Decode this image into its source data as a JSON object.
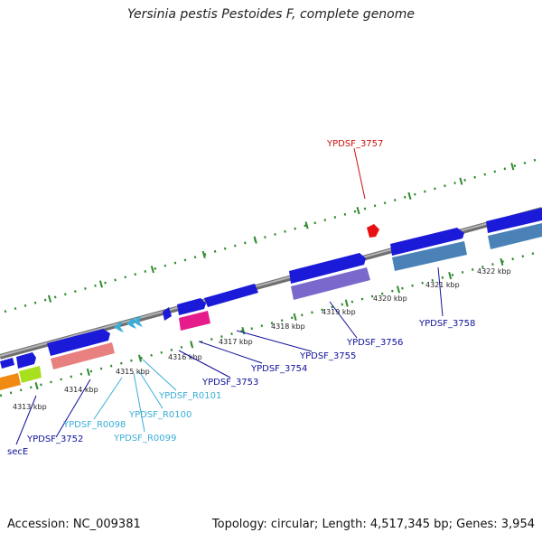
{
  "title": "Yersinia pestis Pestoides F, complete genome",
  "footer": {
    "accession": "Accession: NC_009381",
    "topology": "Topology: circular; Length: 4,517,345 bp; Genes: 3,954"
  },
  "colors": {
    "backbone": "#8c8c8c",
    "tick": "#2e8b2e",
    "cds_forward": "#1a1ad8",
    "label_blue": "#10109a",
    "label_cyan": "#3aaed8",
    "label_red": "#cc1111"
  },
  "ticks": [
    {
      "label": "4313 kbp"
    },
    {
      "label": "4314 kbp"
    },
    {
      "label": "4315 kbp"
    },
    {
      "label": "4316 kbp"
    },
    {
      "label": "4317 kbp"
    },
    {
      "label": "4318 kbp"
    },
    {
      "label": "4319 kbp"
    },
    {
      "label": "4320 kbp"
    },
    {
      "label": "4321 kbp"
    },
    {
      "label": "4322 kbp"
    }
  ],
  "genes": [
    {
      "name": "secE",
      "color": "label_blue"
    },
    {
      "name": "YPDSF_3752",
      "color": "label_blue"
    },
    {
      "name": "YPDSF_R0098",
      "color": "label_cyan"
    },
    {
      "name": "YPDSF_R0099",
      "color": "label_cyan"
    },
    {
      "name": "YPDSF_R0100",
      "color": "label_cyan"
    },
    {
      "name": "YPDSF_R0101",
      "color": "label_cyan"
    },
    {
      "name": "YPDSF_3753",
      "color": "label_blue"
    },
    {
      "name": "YPDSF_3754",
      "color": "label_blue"
    },
    {
      "name": "YPDSF_3755",
      "color": "label_blue"
    },
    {
      "name": "YPDSF_3756",
      "color": "label_blue"
    },
    {
      "name": "YPDSF_3757",
      "color": "label_red"
    },
    {
      "name": "YPDSF_3758",
      "color": "label_blue"
    }
  ]
}
